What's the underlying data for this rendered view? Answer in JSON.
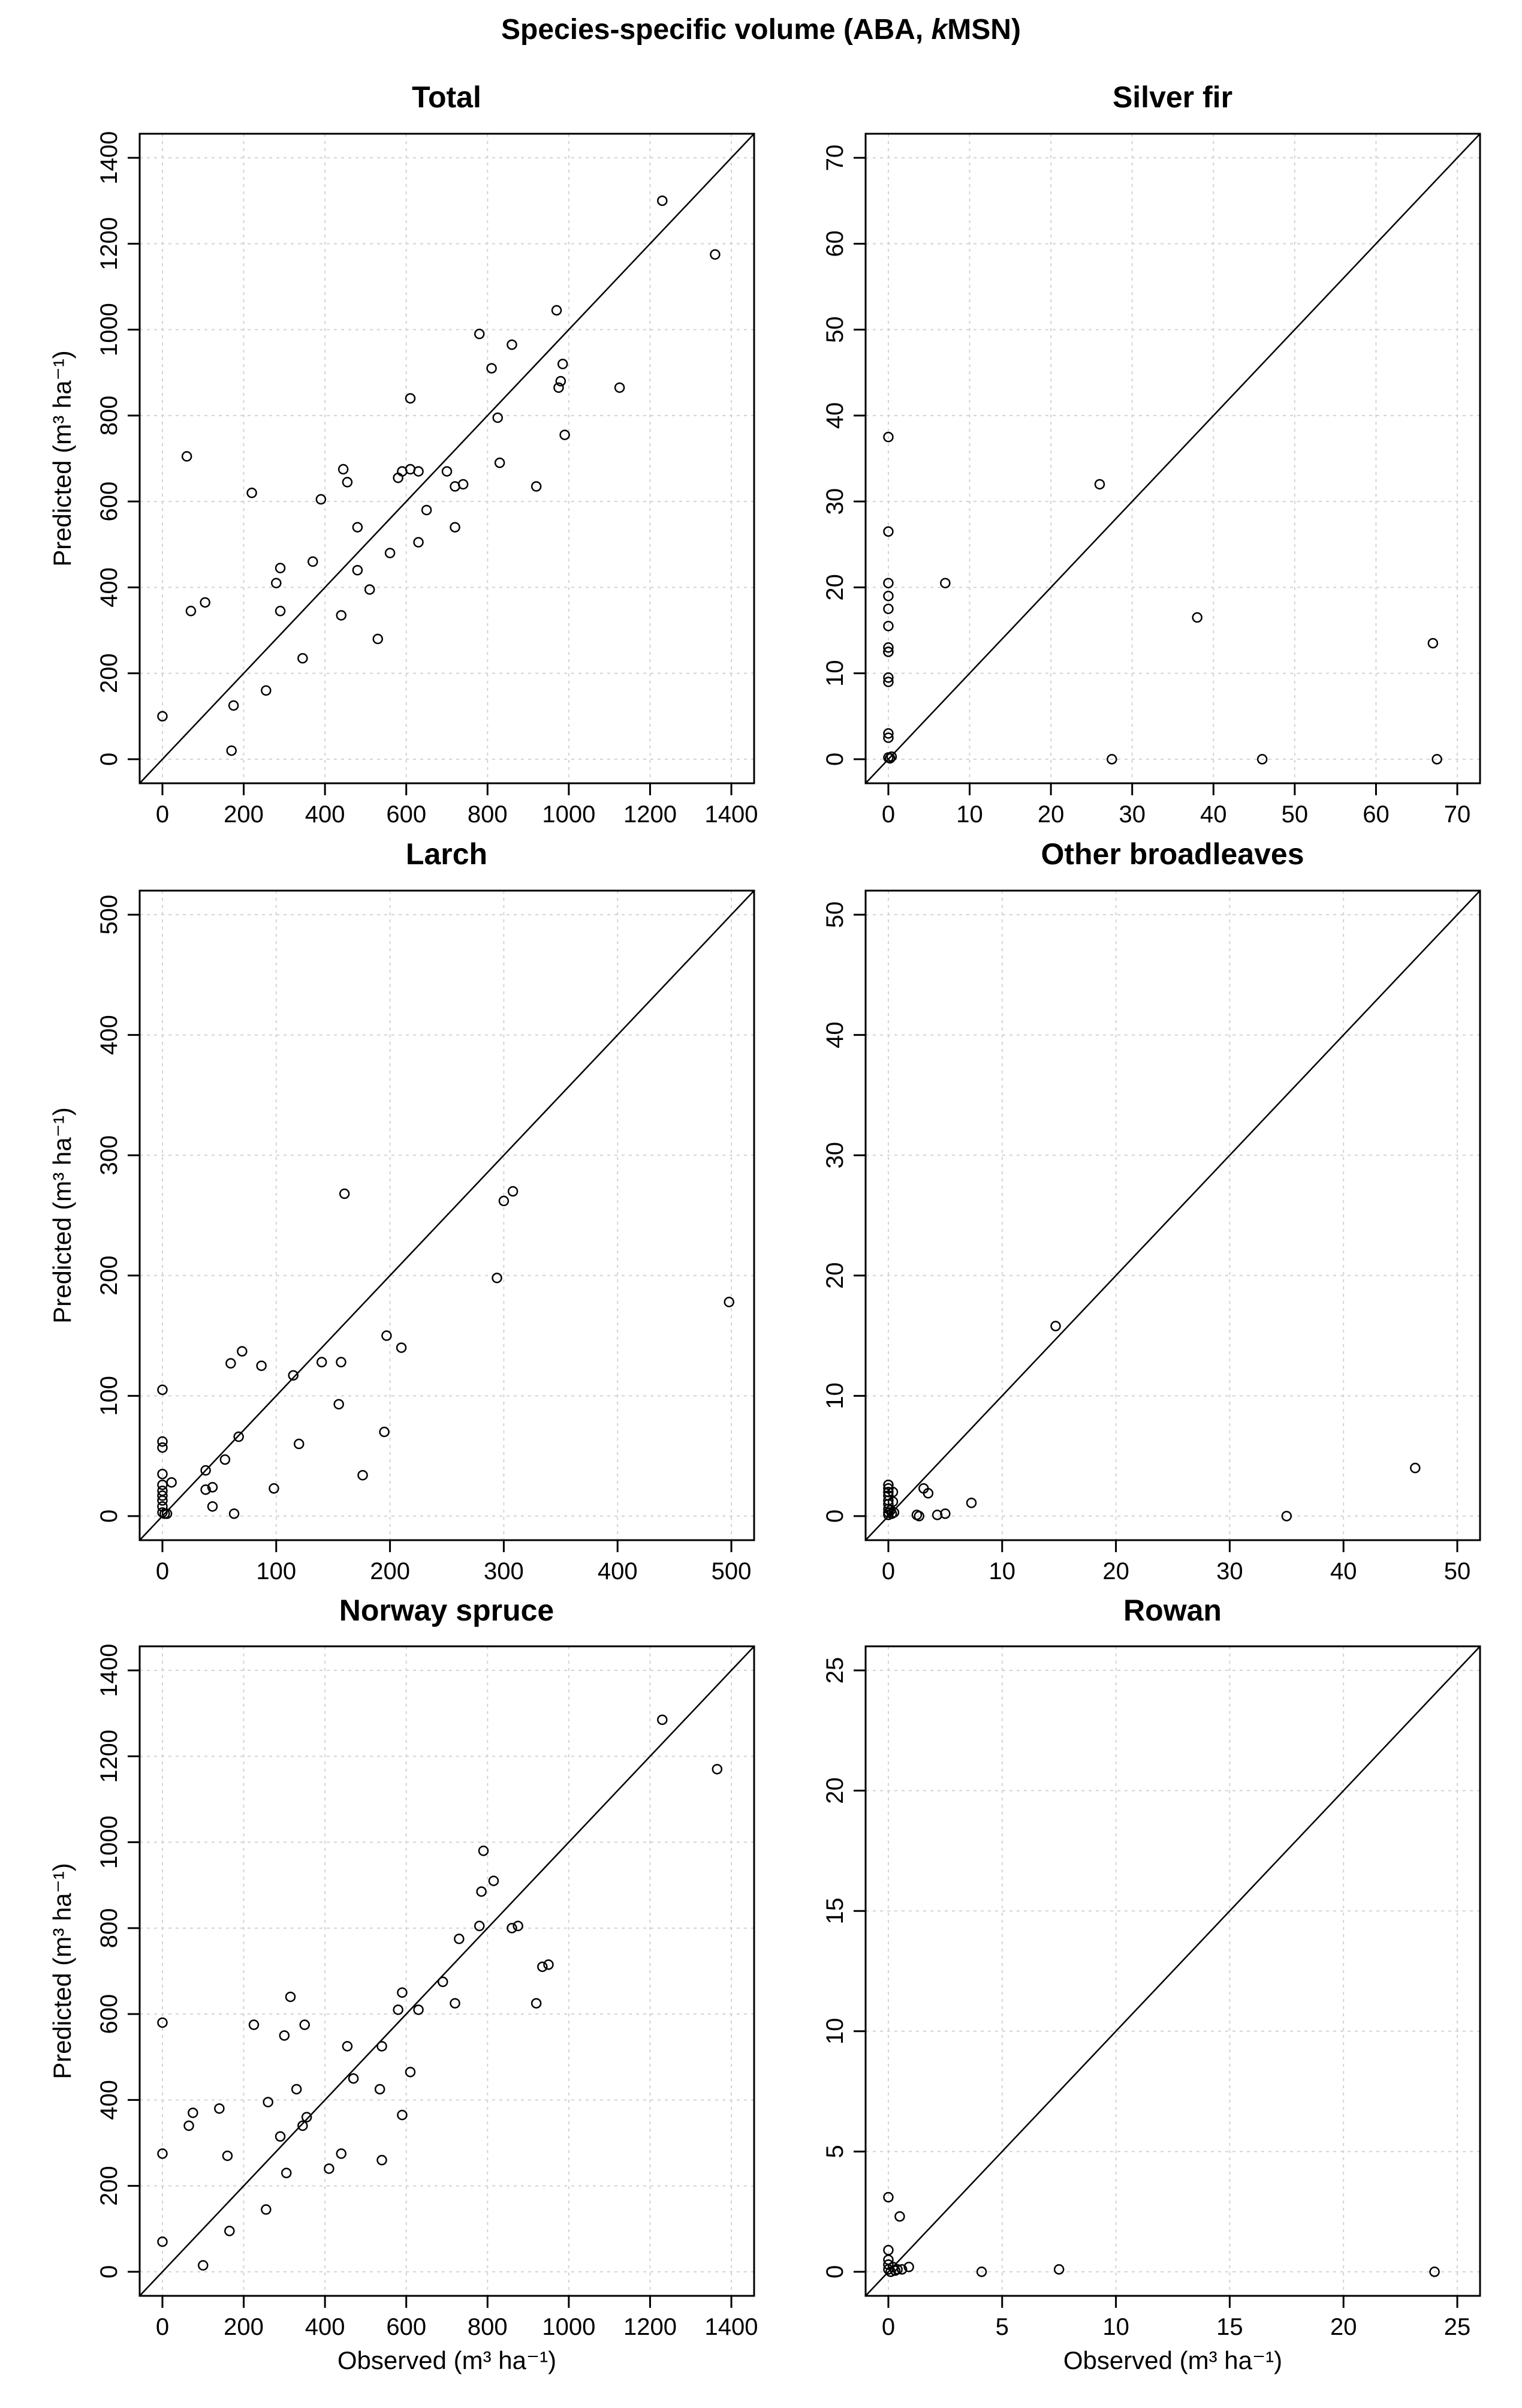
{
  "figure_title": {
    "prefix": "Species-specific volume (ABA, ",
    "italic": "k",
    "suffix": "MSN)"
  },
  "axis_labels": {
    "predicted": "Predicted (m³ ha⁻¹)",
    "observed": "Observed (m³ ha⁻¹)"
  },
  "chart_data": [
    {
      "type": "scatter",
      "title": "Total",
      "xlabel": "",
      "ylabel": "Predicted (m³ ha⁻¹)",
      "xlim": [
        0,
        1400
      ],
      "ylim": [
        0,
        1400
      ],
      "xticks": [
        0,
        200,
        400,
        600,
        800,
        1000,
        1200,
        1400
      ],
      "yticks": [
        0,
        200,
        400,
        600,
        800,
        1000,
        1200,
        1400
      ],
      "reference_line": "1:1",
      "grid": true,
      "points": [
        [
          0,
          100
        ],
        [
          60,
          705
        ],
        [
          70,
          345
        ],
        [
          105,
          365
        ],
        [
          170,
          20
        ],
        [
          175,
          125
        ],
        [
          220,
          620
        ],
        [
          255,
          160
        ],
        [
          280,
          410
        ],
        [
          290,
          445
        ],
        [
          290,
          345
        ],
        [
          345,
          235
        ],
        [
          370,
          460
        ],
        [
          390,
          605
        ],
        [
          440,
          335
        ],
        [
          445,
          675
        ],
        [
          455,
          645
        ],
        [
          480,
          540
        ],
        [
          480,
          440
        ],
        [
          510,
          395
        ],
        [
          530,
          280
        ],
        [
          560,
          480
        ],
        [
          580,
          655
        ],
        [
          590,
          670
        ],
        [
          610,
          675
        ],
        [
          610,
          840
        ],
        [
          630,
          670
        ],
        [
          630,
          505
        ],
        [
          650,
          580
        ],
        [
          700,
          670
        ],
        [
          720,
          635
        ],
        [
          720,
          540
        ],
        [
          740,
          640
        ],
        [
          780,
          990
        ],
        [
          810,
          910
        ],
        [
          825,
          795
        ],
        [
          830,
          690
        ],
        [
          860,
          965
        ],
        [
          920,
          635
        ],
        [
          970,
          1045
        ],
        [
          975,
          865
        ],
        [
          980,
          880
        ],
        [
          985,
          920
        ],
        [
          990,
          755
        ],
        [
          1125,
          865
        ],
        [
          1230,
          1300
        ],
        [
          1360,
          1175
        ]
      ]
    },
    {
      "type": "scatter",
      "title": "Silver fir",
      "xlabel": "",
      "ylabel": "",
      "xlim": [
        0,
        70
      ],
      "ylim": [
        0,
        70
      ],
      "xticks": [
        0,
        10,
        20,
        30,
        40,
        50,
        60,
        70
      ],
      "yticks": [
        0,
        10,
        20,
        30,
        40,
        50,
        60,
        70
      ],
      "reference_line": "1:1",
      "grid": true,
      "points": [
        [
          0,
          37.5
        ],
        [
          0,
          26.5
        ],
        [
          0,
          20.5
        ],
        [
          0,
          19
        ],
        [
          0,
          17.5
        ],
        [
          0,
          15.5
        ],
        [
          0,
          13
        ],
        [
          0,
          12.5
        ],
        [
          0,
          12.5
        ],
        [
          0,
          9.5
        ],
        [
          0,
          9
        ],
        [
          0,
          3
        ],
        [
          0,
          2.5
        ],
        [
          0,
          0.2
        ],
        [
          0.2,
          0.1
        ],
        [
          0.4,
          0.3
        ],
        [
          7,
          20.5
        ],
        [
          26,
          32
        ],
        [
          27.5,
          0
        ],
        [
          38,
          16.5
        ],
        [
          46,
          0
        ],
        [
          67,
          13.5
        ],
        [
          67.5,
          0
        ]
      ]
    },
    {
      "type": "scatter",
      "title": "Larch",
      "xlabel": "",
      "ylabel": "Predicted (m³ ha⁻¹)",
      "xlim": [
        0,
        500
      ],
      "ylim": [
        0,
        500
      ],
      "xticks": [
        0,
        100,
        200,
        300,
        400,
        500
      ],
      "yticks": [
        0,
        100,
        200,
        300,
        400,
        500
      ],
      "reference_line": "1:1",
      "grid": true,
      "points": [
        [
          0,
          105
        ],
        [
          0,
          62
        ],
        [
          0,
          57
        ],
        [
          0,
          35
        ],
        [
          0,
          26
        ],
        [
          0,
          21
        ],
        [
          0,
          17
        ],
        [
          0,
          13
        ],
        [
          0,
          8
        ],
        [
          0,
          3
        ],
        [
          2,
          2
        ],
        [
          4,
          2
        ],
        [
          8,
          28
        ],
        [
          38,
          38
        ],
        [
          38,
          22
        ],
        [
          44,
          8
        ],
        [
          44,
          24
        ],
        [
          55,
          47
        ],
        [
          60,
          127
        ],
        [
          63,
          2
        ],
        [
          67,
          66
        ],
        [
          70,
          137
        ],
        [
          87,
          125
        ],
        [
          98,
          23
        ],
        [
          115,
          117
        ],
        [
          120,
          60
        ],
        [
          140,
          128
        ],
        [
          155,
          93
        ],
        [
          157,
          128
        ],
        [
          160,
          268
        ],
        [
          176,
          34
        ],
        [
          195,
          70
        ],
        [
          197,
          150
        ],
        [
          210,
          140
        ],
        [
          294,
          198
        ],
        [
          300,
          262
        ],
        [
          308,
          270
        ],
        [
          498,
          178
        ]
      ]
    },
    {
      "type": "scatter",
      "title": "Other broadleaves",
      "xlabel": "",
      "ylabel": "",
      "xlim": [
        0,
        50
      ],
      "ylim": [
        0,
        50
      ],
      "xticks": [
        0,
        10,
        20,
        30,
        40,
        50
      ],
      "yticks": [
        0,
        10,
        20,
        30,
        40,
        50
      ],
      "reference_line": "1:1",
      "grid": true,
      "points": [
        [
          0,
          2.6
        ],
        [
          0,
          2.3
        ],
        [
          0,
          2
        ],
        [
          0,
          1.7
        ],
        [
          0,
          1.3
        ],
        [
          0,
          1
        ],
        [
          0,
          0.6
        ],
        [
          0,
          0.3
        ],
        [
          0,
          0.1
        ],
        [
          0.2,
          0.5
        ],
        [
          0.3,
          0.2
        ],
        [
          0.4,
          1.2
        ],
        [
          0.4,
          2
        ],
        [
          0.5,
          0.3
        ],
        [
          2.5,
          0.1
        ],
        [
          2.7,
          0
        ],
        [
          3.1,
          2.3
        ],
        [
          3.5,
          1.9
        ],
        [
          4.3,
          0.1
        ],
        [
          5,
          0.2
        ],
        [
          7.3,
          1.1
        ],
        [
          14.7,
          15.8
        ],
        [
          35,
          0
        ],
        [
          46.3,
          4
        ]
      ]
    },
    {
      "type": "scatter",
      "title": "Norway spruce",
      "xlabel": "Observed (m³ ha⁻¹)",
      "ylabel": "Predicted (m³ ha⁻¹)",
      "xlim": [
        0,
        1400
      ],
      "ylim": [
        0,
        1400
      ],
      "xticks": [
        0,
        200,
        400,
        600,
        800,
        1000,
        1200,
        1400
      ],
      "yticks": [
        0,
        200,
        400,
        600,
        800,
        1000,
        1200,
        1400
      ],
      "reference_line": "1:1",
      "grid": true,
      "points": [
        [
          0,
          580
        ],
        [
          0,
          275
        ],
        [
          0,
          70
        ],
        [
          65,
          340
        ],
        [
          75,
          370
        ],
        [
          100,
          15
        ],
        [
          140,
          380
        ],
        [
          160,
          270
        ],
        [
          165,
          95
        ],
        [
          225,
          575
        ],
        [
          255,
          145
        ],
        [
          260,
          395
        ],
        [
          290,
          315
        ],
        [
          300,
          550
        ],
        [
          305,
          230
        ],
        [
          315,
          640
        ],
        [
          330,
          425
        ],
        [
          345,
          340
        ],
        [
          350,
          575
        ],
        [
          355,
          360
        ],
        [
          410,
          240
        ],
        [
          440,
          275
        ],
        [
          455,
          525
        ],
        [
          470,
          450
        ],
        [
          535,
          425
        ],
        [
          540,
          525
        ],
        [
          540,
          260
        ],
        [
          580,
          610
        ],
        [
          590,
          365
        ],
        [
          590,
          650
        ],
        [
          610,
          465
        ],
        [
          630,
          610
        ],
        [
          690,
          675
        ],
        [
          720,
          625
        ],
        [
          730,
          775
        ],
        [
          780,
          805
        ],
        [
          785,
          885
        ],
        [
          790,
          980
        ],
        [
          815,
          910
        ],
        [
          860,
          800
        ],
        [
          875,
          805
        ],
        [
          920,
          625
        ],
        [
          935,
          710
        ],
        [
          950,
          715
        ],
        [
          1230,
          1285
        ],
        [
          1365,
          1170
        ]
      ]
    },
    {
      "type": "scatter",
      "title": "Rowan",
      "xlabel": "Observed (m³ ha⁻¹)",
      "ylabel": "",
      "xlim": [
        0,
        25
      ],
      "ylim": [
        0,
        25
      ],
      "xticks": [
        0,
        5,
        10,
        15,
        20,
        25
      ],
      "yticks": [
        0,
        5,
        10,
        15,
        20,
        25
      ],
      "reference_line": "1:1",
      "grid": true,
      "points": [
        [
          0,
          3.1
        ],
        [
          0,
          0.9
        ],
        [
          0,
          0.5
        ],
        [
          0,
          0.3
        ],
        [
          0,
          0.1
        ],
        [
          0.1,
          0
        ],
        [
          0.2,
          0.2
        ],
        [
          0.3,
          0.05
        ],
        [
          0.4,
          0.1
        ],
        [
          0.5,
          2.3
        ],
        [
          0.6,
          0.1
        ],
        [
          0.9,
          0.2
        ],
        [
          4.1,
          0
        ],
        [
          7.5,
          0.1
        ],
        [
          24,
          0
        ]
      ]
    }
  ]
}
